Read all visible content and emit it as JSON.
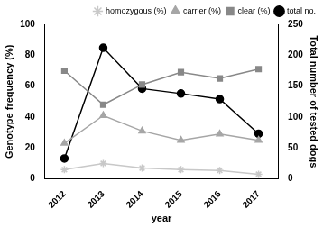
{
  "chart_data": {
    "type": "line",
    "x_label": "year",
    "y_label": "Genotype frequency (%)",
    "y2_label": "Total number of tested dogs",
    "categories": [
      "2012",
      "2013",
      "2014",
      "2015",
      "2016",
      "2017"
    ],
    "series": [
      {
        "name": "homozygous (%)",
        "color": "#c8c8c8",
        "marker": "star",
        "line_style": "solid",
        "values": [
          6,
          10,
          7,
          6,
          5.5,
          3
        ]
      },
      {
        "name": "carrier (%)",
        "color": "#a6a6a6",
        "marker": "triangle",
        "line_style": "solid",
        "values": [
          23,
          41,
          31,
          25,
          29,
          25
        ]
      },
      {
        "name": "clear (%)",
        "color": "#888888",
        "marker": "rect",
        "line_style": "solid",
        "values": [
          70,
          48,
          61,
          69,
          65,
          71
        ]
      },
      {
        "name": "total no.",
        "color": "#000000",
        "marker": "circle",
        "line_style": "solid",
        "axis": "y2",
        "values": [
          33,
          212,
          146,
          138,
          129,
          73
        ]
      }
    ],
    "ylim": [
      0,
      100
    ],
    "yticks": [
      0,
      20,
      40,
      60,
      80,
      100
    ],
    "y2lim": [
      0,
      250
    ],
    "y2ticks": [
      0,
      50,
      100,
      150,
      200,
      250
    ],
    "grid": false,
    "legend": "upper right"
  }
}
